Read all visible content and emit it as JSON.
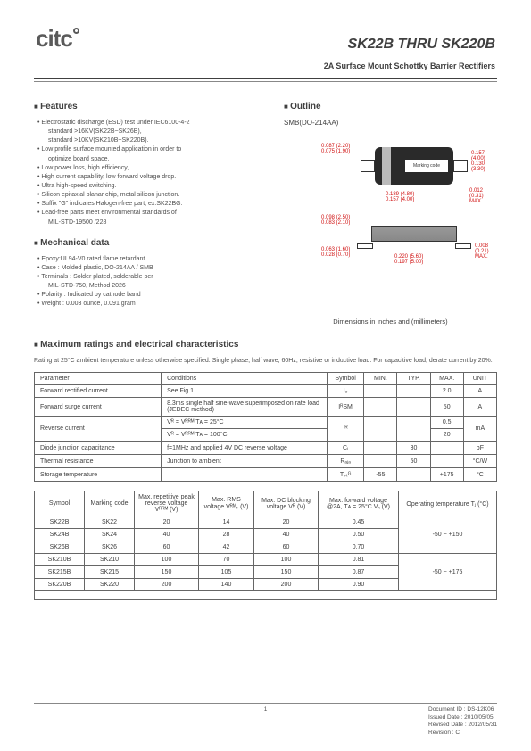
{
  "header": {
    "logo_text": "citc",
    "title": "SK22B THRU SK220B",
    "subtitle": "2A Surface Mount Schottky Barrier Rectifiers"
  },
  "features": {
    "heading": "Features",
    "items": [
      {
        "t": "Electrostatic discharge (ESD) test under IEC6100-4-2"
      },
      {
        "t": "standard >16KV(SK22B~SK26B),",
        "sub": true
      },
      {
        "t": "standard >10KV(SK210B~SK220B).",
        "sub": true
      },
      {
        "t": "Low profile surface mounted application in order to"
      },
      {
        "t": "optimize board space.",
        "sub": true
      },
      {
        "t": "Low power loss, high efficiency,"
      },
      {
        "t": "High current capability, low forward voltage drop."
      },
      {
        "t": "Ultra high-speed switching."
      },
      {
        "t": "Silicon epitaxial planar chip, metal silicon junction."
      },
      {
        "t": "Suffix \"G\" indicates Halogen-free part, ex.SK22BG."
      },
      {
        "t": "Lead-free parts meet environmental standards of"
      },
      {
        "t": "MIL-STD-19500 /228",
        "sub": true
      }
    ]
  },
  "mechanical": {
    "heading": "Mechanical data",
    "items": [
      {
        "t": "Epoxy:UL94-V0 rated flame retardant"
      },
      {
        "t": "Case : Molded plastic,  DO-214AA / SMB"
      },
      {
        "t": "Terminals : Solder plated, solderable per"
      },
      {
        "t": "MIL-STD-750, Method 2026",
        "sub": true
      },
      {
        "t": "Polarity : Indicated by cathode band"
      },
      {
        "t": "Weight : 0.003 ounce,  0.091 gram"
      }
    ]
  },
  "outline": {
    "heading": "Outline",
    "pkg_label": "SMB(DO-214AA)",
    "marking_label": "Marking code",
    "dims": {
      "d1": "0.087 (2.20)",
      "d1b": "0.075 (1.90)",
      "d2": "0.157 (4.00)",
      "d2b": "0.130 (3.30)",
      "d3": "0.189 (4.80)",
      "d3b": "0.157 (4.00)",
      "d4": "0.012 (0.31)",
      "d4m": "MAX.",
      "d5": "0.098 (2.50)",
      "d5b": "0.083 (2.10)",
      "d6": "0.063 (1.60)",
      "d6b": "0.028 (0.70)",
      "d7": "0.220 (5.60)",
      "d7b": "0.197 (5.00)",
      "d8": "0.008 (0.21)",
      "d8m": "MAX."
    },
    "footer": "Dimensions in inches and (millimeters)"
  },
  "ratings": {
    "heading": "Maximum ratings and electrical characteristics",
    "desc": "Rating at 25°C ambient  temperature  unless  otherwise  specified. Single phase, half wave, 60Hz, resistive or inductive load. For capacitive load, derate current by 20%.",
    "columns": [
      "Parameter",
      "Conditions",
      "Symbol",
      "MIN.",
      "TYP.",
      "MAX.",
      "UNIT"
    ],
    "rows": [
      {
        "param": "Forward rectified current",
        "cond": "See Fig.1",
        "sym": "Iₒ",
        "min": "",
        "typ": "",
        "max": "2.0",
        "unit": "A",
        "rowspan": 1
      },
      {
        "param": "Forward surge current",
        "cond": "8.3ms single half sine-wave superimposed on rate load (JEDEC method)",
        "sym": "IᴿSM",
        "min": "",
        "typ": "",
        "max": "50",
        "unit": "A",
        "rowspan": 1
      }
    ],
    "reverse": {
      "param": "Reverse current",
      "c1": "Vᴿ  =  Vᴿᴿᴹ  Tᴀ  =  25°C",
      "c2": "Vᴿ  =  Vᴿᴿᴹ  Tᴀ  =  100°C",
      "sym": "Iᴿ",
      "m1": "0.5",
      "m2": "20",
      "unit": "mA"
    },
    "rows2": [
      {
        "param": "Diode junction capacitance",
        "cond": "f=1MHz and applied 4V DC reverse voltage",
        "sym": "Cⱼ",
        "min": "",
        "typ": "30",
        "max": "",
        "unit": "pF"
      },
      {
        "param": "Thermal resistance",
        "cond": "Junction to ambient",
        "sym": "Rₐⱼₐ",
        "min": "",
        "typ": "50",
        "max": "",
        "unit": "°C/W"
      },
      {
        "param": "Storage temperature",
        "cond": "",
        "sym": "Tₛₜᴳ",
        "min": "-55",
        "typ": "",
        "max": "+175",
        "unit": "°C"
      }
    ]
  },
  "parts": {
    "columns": [
      "Symbol",
      "Marking code",
      "Max. repetitive peak reverse voltage Vᴿᴿᴹ (V)",
      "Max. RMS voltage Vᴿᴹₛ (V)",
      "Max. DC blocking voltage Vᴿ (V)",
      "Max. forward voltage @2A, Tᴀ = 25°C Vₓ (V)",
      "Operating temperature Tⱼ (°C)"
    ],
    "rows": [
      {
        "sym": "SK22B",
        "mc": "SK22",
        "vrrm": "20",
        "vrms": "14",
        "vr": "20",
        "vf": "0.45"
      },
      {
        "sym": "SK24B",
        "mc": "SK24",
        "vrrm": "40",
        "vrms": "28",
        "vr": "40",
        "vf": "0.50"
      },
      {
        "sym": "SK26B",
        "mc": "SK26",
        "vrrm": "60",
        "vrms": "42",
        "vr": "60",
        "vf": "0.70"
      },
      {
        "sym": "SK210B",
        "mc": "SK210",
        "vrrm": "100",
        "vrms": "70",
        "vr": "100",
        "vf": "0.81"
      },
      {
        "sym": "SK215B",
        "mc": "SK215",
        "vrrm": "150",
        "vrms": "105",
        "vr": "150",
        "vf": "0.87"
      },
      {
        "sym": "SK220B",
        "mc": "SK220",
        "vrrm": "200",
        "vrms": "140",
        "vr": "200",
        "vf": "0.90"
      }
    ],
    "temp1": "-50 ~ +150",
    "temp2": "-50 ~ +175"
  },
  "footer": {
    "page": "1",
    "doc_id": "Document ID : DS-12K06",
    "issued": "Issued Date  : 2010/05/05",
    "revised": "Revised Date : 2012/05/31",
    "revision": "Revision : C"
  }
}
